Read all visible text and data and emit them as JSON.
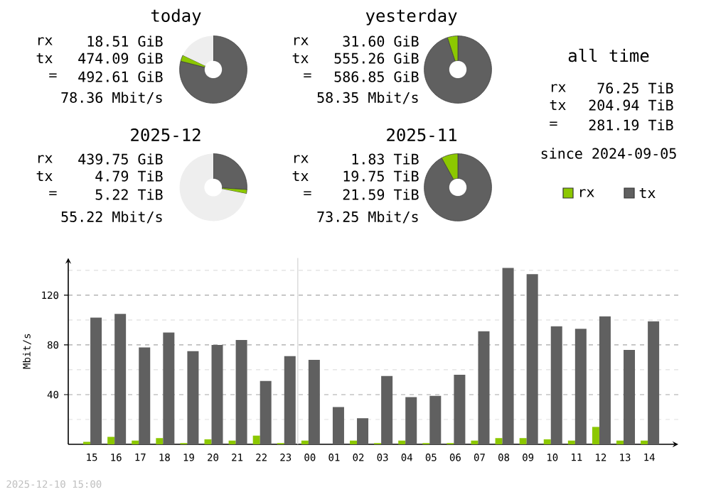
{
  "chart_data": [
    {
      "type": "donut",
      "title": "today",
      "categories": [
        null,
        null,
        null
      ],
      "values": [
        79,
        3,
        18
      ],
      "colors": [
        "#606060",
        "#8cc800",
        "#eeeeee"
      ],
      "annotations": [
        "rx",
        "18.51 GiB",
        "tx",
        "474.09 GiB",
        "=",
        "492.61 GiB",
        "78.36 Mbit/s"
      ]
    },
    {
      "type": "donut",
      "title": "yesterday",
      "categories": [
        null,
        null
      ],
      "values": [
        95,
        5
      ],
      "colors": [
        "#606060",
        "#8cc800"
      ],
      "annotations": [
        "rx",
        "31.60 GiB",
        "tx",
        "555.26 GiB",
        "=",
        "586.85 GiB",
        "58.35 Mbit/s"
      ]
    },
    {
      "type": "other",
      "title": "all time",
      "annotations": [
        "rx",
        "76.25 TiB",
        "tx",
        "204.94 TiB",
        "=",
        "281.19 TiB",
        "since 2024-09-05"
      ]
    },
    {
      "type": "donut",
      "title": "2025-12",
      "categories": [
        null,
        null,
        null
      ],
      "values": [
        26,
        2,
        72
      ],
      "colors": [
        "#606060",
        "#8cc800",
        "#eeeeee"
      ],
      "annotations": [
        "rx",
        "439.75 GiB",
        "tx",
        "4.79 TiB",
        "=",
        "5.22 TiB",
        "55.22 Mbit/s"
      ]
    },
    {
      "type": "donut",
      "title": "2025-11",
      "categories": [
        null,
        null
      ],
      "values": [
        92,
        8
      ],
      "colors": [
        "#606060",
        "#8cc800"
      ],
      "annotations": [
        "rx",
        "1.83 TiB",
        "tx",
        "19.75 TiB",
        "=",
        "21.59 TiB",
        "73.25 Mbit/s"
      ]
    },
    {
      "type": "bar",
      "ylabel": "Mbit/s",
      "categories": [
        "15",
        "16",
        "17",
        "18",
        "19",
        "20",
        "21",
        "22",
        "23",
        "00",
        "01",
        "02",
        "03",
        "04",
        "05",
        "06",
        "07",
        "08",
        "09",
        "10",
        "11",
        "12",
        "13",
        "14"
      ],
      "series": [
        {
          "name": "rx",
          "color": "#8cc800",
          "values": [
            2,
            6,
            3,
            5,
            1,
            4,
            3,
            7,
            1,
            3,
            0,
            3,
            1,
            3,
            1,
            1,
            3,
            5,
            5,
            4,
            3,
            14,
            3,
            3
          ]
        },
        {
          "name": "tx",
          "color": "#606060",
          "values": [
            102,
            105,
            78,
            90,
            75,
            80,
            84,
            51,
            71,
            68,
            30,
            21,
            55,
            38,
            39,
            56,
            91,
            142,
            137,
            95,
            93,
            103,
            76,
            99
          ]
        }
      ],
      "ylim": [
        0,
        150
      ],
      "yticks": [
        {
          "value": 20,
          "label": null
        },
        40,
        {
          "value": 60,
          "label": null
        },
        80,
        {
          "value": 100,
          "label": null
        },
        120,
        {
          "value": 140,
          "label": null
        }
      ],
      "grid": true,
      "legend": "top right",
      "ref_lines": [
        {
          "axis": "x",
          "value": "00"
        }
      ],
      "annotations": [
        "2025-12-10 15:00"
      ]
    }
  ]
}
